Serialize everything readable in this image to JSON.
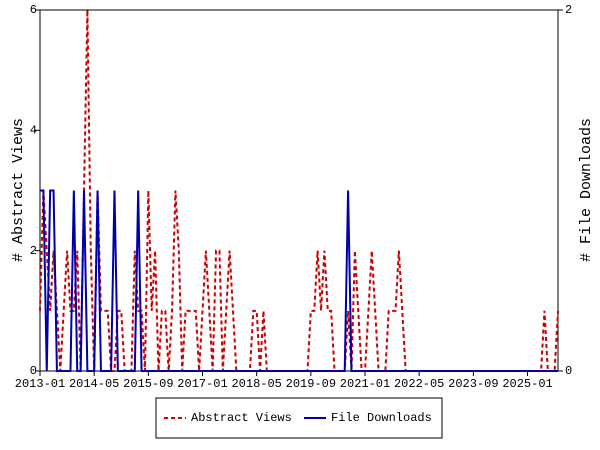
{
  "chart_data": {
    "type": "line",
    "x": [
      "2013-01",
      "2013-02",
      "2013-03",
      "2013-04",
      "2013-05",
      "2013-06",
      "2013-07",
      "2013-08",
      "2013-09",
      "2013-10",
      "2013-11",
      "2013-12",
      "2014-01",
      "2014-02",
      "2014-03",
      "2014-04",
      "2014-05",
      "2014-06",
      "2014-07",
      "2014-08",
      "2014-09",
      "2014-10",
      "2014-11",
      "2014-12",
      "2015-01",
      "2015-02",
      "2015-03",
      "2015-04",
      "2015-05",
      "2015-06",
      "2015-07",
      "2015-08",
      "2015-09",
      "2015-10",
      "2015-11",
      "2015-12",
      "2016-01",
      "2016-02",
      "2016-03",
      "2016-04",
      "2016-05",
      "2016-06",
      "2016-07",
      "2016-08",
      "2016-09",
      "2016-10",
      "2016-11",
      "2016-12",
      "2017-01",
      "2017-02",
      "2017-03",
      "2017-04",
      "2017-05",
      "2017-06",
      "2017-07",
      "2017-08",
      "2017-09",
      "2017-10",
      "2017-11",
      "2017-12",
      "2018-01",
      "2018-02",
      "2018-03",
      "2018-04",
      "2018-05",
      "2018-06",
      "2018-07",
      "2018-08",
      "2018-09",
      "2018-10",
      "2018-11",
      "2018-12",
      "2019-01",
      "2019-02",
      "2019-03",
      "2019-04",
      "2019-05",
      "2019-06",
      "2019-07",
      "2019-08",
      "2019-09",
      "2019-10",
      "2019-11",
      "2019-12",
      "2020-01",
      "2020-02",
      "2020-03",
      "2020-04",
      "2020-05",
      "2020-06",
      "2020-07",
      "2020-08",
      "2020-09",
      "2020-10",
      "2020-11",
      "2020-12",
      "2021-01",
      "2021-02",
      "2021-03",
      "2021-04",
      "2021-05",
      "2021-06",
      "2021-07",
      "2021-08",
      "2021-09",
      "2021-10",
      "2021-11",
      "2021-12",
      "2022-01",
      "2022-02",
      "2022-03",
      "2022-04",
      "2022-05",
      "2022-06",
      "2022-07",
      "2022-08",
      "2022-09",
      "2022-10",
      "2022-11",
      "2022-12",
      "2023-01",
      "2023-02",
      "2023-03",
      "2023-04",
      "2023-05",
      "2023-06",
      "2023-07",
      "2023-08",
      "2023-09",
      "2023-10",
      "2023-11",
      "2023-12",
      "2024-01",
      "2024-02",
      "2024-03",
      "2024-04",
      "2024-05",
      "2024-06",
      "2024-07",
      "2024-08",
      "2024-09",
      "2024-10",
      "2024-11",
      "2024-12",
      "2025-01",
      "2025-02",
      "2025-03",
      "2025-04",
      "2025-05",
      "2025-06",
      "2025-07",
      "2025-08",
      "2025-09",
      "2025-10"
    ],
    "series": [
      {
        "name": "Abstract Views",
        "color": "#cc0000",
        "dashed": true,
        "values": [
          1,
          3,
          2,
          1,
          2,
          1,
          0,
          1,
          2,
          1,
          1,
          2,
          0,
          3,
          6,
          2,
          0,
          3,
          1,
          1,
          1,
          0,
          0,
          1,
          1,
          0,
          0,
          0,
          2,
          1,
          1,
          0,
          3,
          1,
          2,
          0,
          1,
          1,
          0,
          1,
          3,
          2,
          0,
          1,
          1,
          1,
          1,
          0,
          1,
          2,
          1,
          0,
          2,
          2,
          0,
          1,
          2,
          1,
          0,
          0,
          0,
          0,
          0,
          1,
          1,
          0,
          1,
          0,
          0,
          0,
          0,
          0,
          0,
          0,
          0,
          0,
          0,
          0,
          0,
          0,
          1,
          1,
          2,
          1,
          2,
          1,
          1,
          0,
          0,
          0,
          0,
          1,
          0,
          2,
          1,
          0,
          0,
          1,
          2,
          1,
          0,
          0,
          0,
          1,
          1,
          1,
          2,
          1,
          0,
          0,
          0,
          0,
          0,
          0,
          0,
          0,
          0,
          0,
          0,
          0,
          0,
          0,
          0,
          0,
          0,
          0,
          0,
          0,
          0,
          0,
          0,
          0,
          0,
          0,
          0,
          0,
          0,
          0,
          0,
          0,
          0,
          0,
          0,
          0,
          0,
          0,
          0,
          0,
          0,
          1,
          0,
          0,
          0,
          1
        ]
      },
      {
        "name": "File Downloads",
        "color": "#0000aa",
        "dashed": false,
        "axis": "y2",
        "values": [
          1,
          1,
          0,
          1,
          1,
          0,
          0,
          0,
          0,
          0,
          1,
          0,
          0,
          1,
          0,
          0,
          0,
          1,
          0,
          0,
          0,
          0,
          1,
          0,
          0,
          0,
          0,
          0,
          0,
          1,
          0,
          0,
          0,
          0,
          0,
          0,
          0,
          0,
          0,
          0,
          0,
          0,
          0,
          0,
          0,
          0,
          0,
          0,
          0,
          0,
          0,
          0,
          0,
          0,
          0,
          0,
          0,
          0,
          0,
          0,
          0,
          0,
          0,
          0,
          0,
          0,
          0,
          0,
          0,
          0,
          0,
          0,
          0,
          0,
          0,
          0,
          0,
          0,
          0,
          0,
          0,
          0,
          0,
          0,
          0,
          0,
          0,
          0,
          0,
          0,
          0,
          1,
          0,
          0,
          0,
          0,
          0,
          0,
          0,
          0,
          0,
          0,
          0,
          0,
          0,
          0,
          0,
          0,
          0,
          0,
          0,
          0,
          0,
          0,
          0,
          0,
          0,
          0,
          0,
          0,
          0,
          0,
          0,
          0,
          0,
          0,
          0,
          0,
          0,
          0,
          0,
          0,
          0,
          0,
          0,
          0,
          0,
          0,
          0,
          0,
          0,
          0,
          0,
          0,
          0,
          0,
          0,
          0,
          0,
          0,
          0,
          0,
          0,
          0
        ]
      }
    ],
    "xlim": [
      "2013-01",
      "2025-10"
    ],
    "xticks": [
      "2013-01",
      "2014-05",
      "2015-09",
      "2017-01",
      "2018-05",
      "2019-09",
      "2021-01",
      "2022-05",
      "2023-09",
      "2025-01"
    ],
    "ylabel": "# Abstract Views",
    "ylim": [
      0,
      6
    ],
    "yticks": [
      0,
      2,
      4,
      6
    ],
    "y2label": "# File Downloads",
    "y2lim": [
      0,
      2
    ],
    "y2ticks": [
      0,
      2
    ],
    "legend": "bottom"
  }
}
